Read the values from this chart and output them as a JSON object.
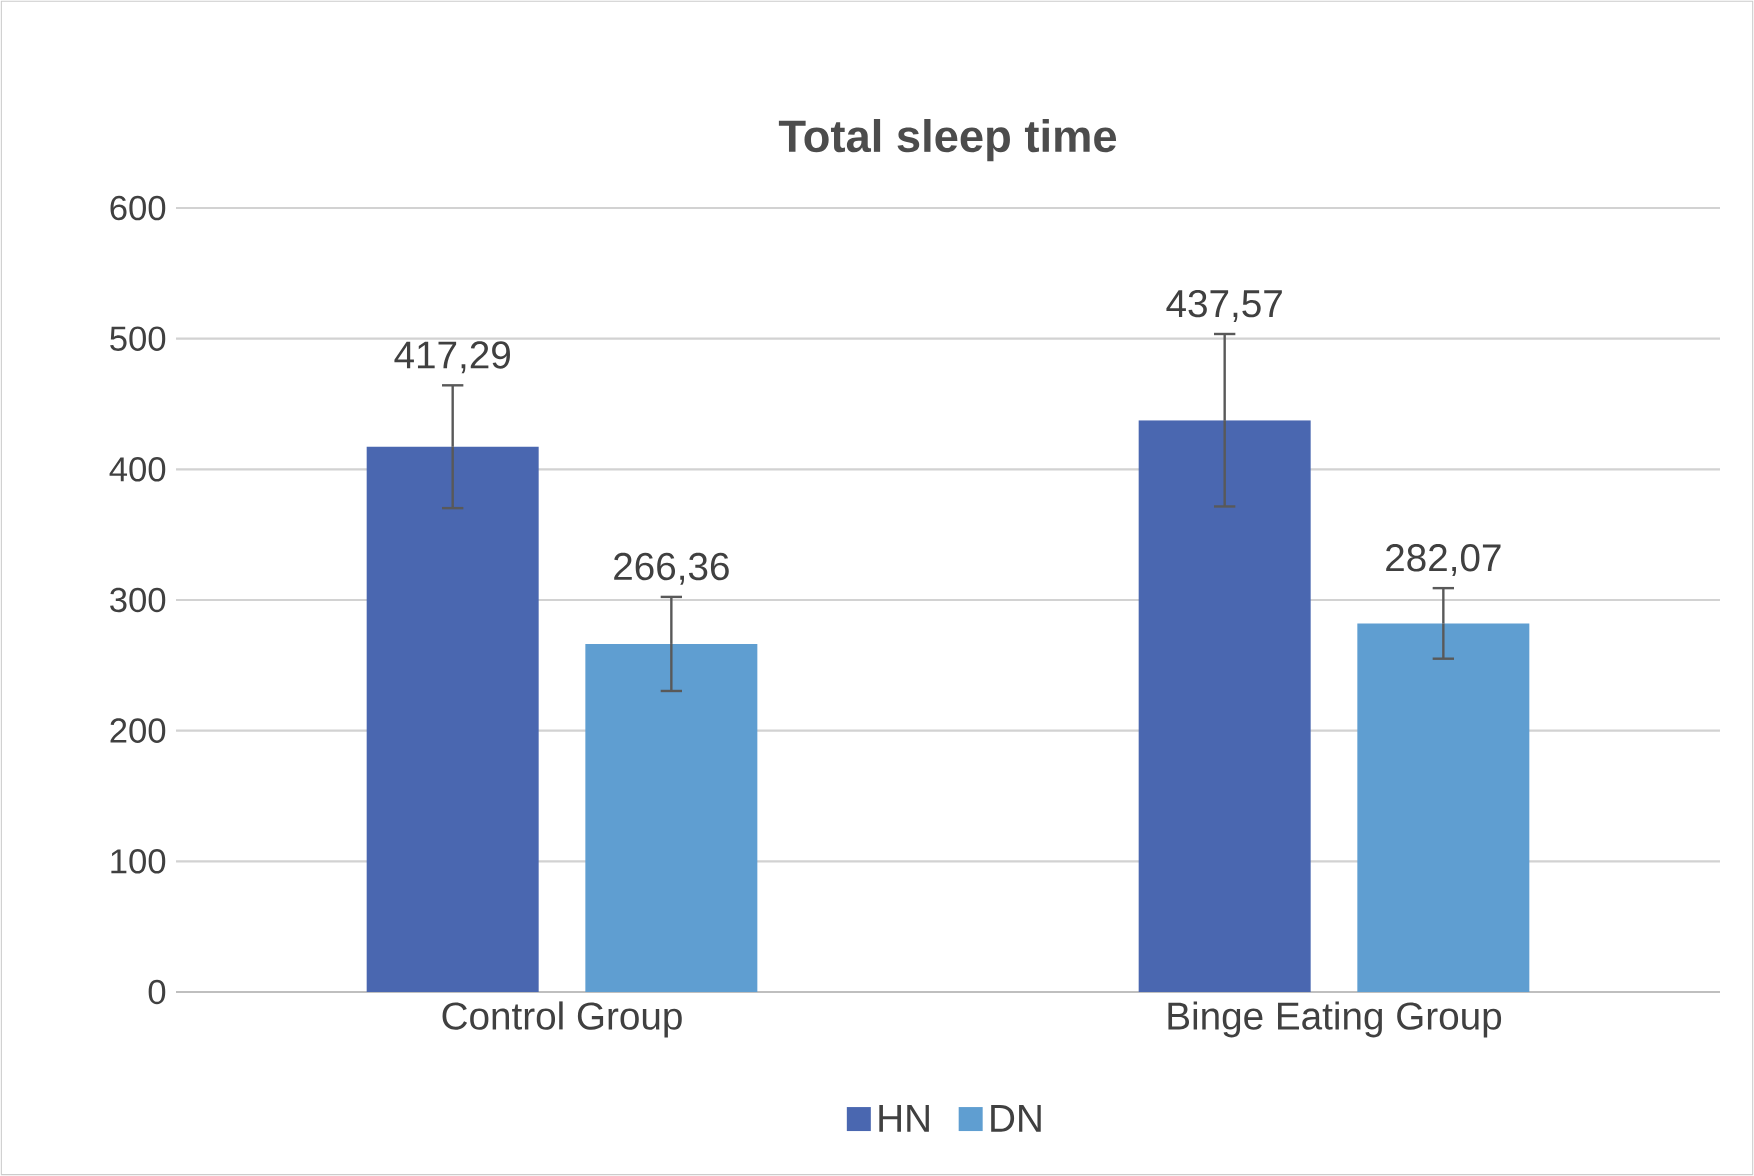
{
  "chart_data": {
    "type": "bar",
    "title": "Total sleep time",
    "categories": [
      "Control Group",
      "Binge Eating Group"
    ],
    "series": [
      {
        "name": "HN",
        "color": "#4a67b0",
        "values": [
          417.29,
          437.57
        ],
        "errors": [
          47,
          66
        ],
        "value_labels": [
          "417,29",
          "437,57"
        ]
      },
      {
        "name": "DN",
        "color": "#5f9ed1",
        "values": [
          266.36,
          282.07
        ],
        "errors": [
          36,
          27
        ],
        "value_labels": [
          "266,36",
          "282,07"
        ]
      }
    ],
    "ylim": [
      0,
      600
    ],
    "yticks": [
      0,
      100,
      200,
      300,
      400,
      500,
      600
    ],
    "grid": "y",
    "legend": "bottom"
  }
}
